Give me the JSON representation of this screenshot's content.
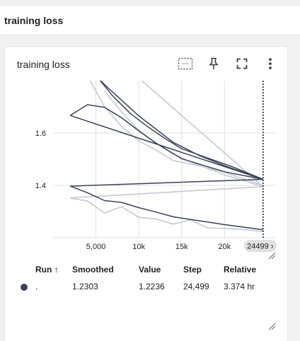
{
  "section": {
    "title": "training loss"
  },
  "card": {
    "title": "training loss",
    "toolbar": {
      "fit_icon": "fit-domain-icon",
      "pin_icon": "pin-icon",
      "fullscreen_icon": "fullscreen-icon",
      "more_icon": "more-vert-icon"
    }
  },
  "legend": {
    "headers": {
      "run": "Run ↑",
      "smoothed": "Smoothed",
      "value": "Value",
      "step": "Step",
      "relative": "Relative"
    },
    "row": {
      "run": ".",
      "smoothed": "1.2303",
      "value": "1.2236",
      "step": "24,499",
      "relative": "3.374 hr"
    }
  },
  "colors": {
    "smoothed": "#3a4256",
    "raw": "#c7c9d4",
    "grid": "#e0e0e0",
    "cursor": "#212121",
    "step_badge": "#e0e0e0"
  },
  "chart_data": {
    "type": "line",
    "title": "",
    "xlabel": "",
    "ylabel": "",
    "x_tick_labels": [
      "5,000",
      "10k",
      "15k",
      "20k"
    ],
    "x_ticks": [
      5000,
      10000,
      15000,
      20000
    ],
    "y_tick_labels": [
      "1.6",
      "1.4"
    ],
    "y_ticks": [
      1.6,
      1.4
    ],
    "xlim": [
      0,
      26000
    ],
    "ylim": [
      1.2,
      1.8
    ],
    "cursor_step": 24499,
    "cursor_label": "24499 ›",
    "series": [
      {
        "kind": "smoothed",
        "x": [
          2000,
          4000,
          6000,
          8000,
          10000,
          12000,
          15000,
          20000,
          24499
        ],
        "y": [
          1.667,
          1.708,
          1.698,
          1.658,
          1.608,
          1.562,
          1.502,
          1.452,
          1.423
        ]
      },
      {
        "kind": "smoothed",
        "x": [
          2000,
          24499
        ],
        "y": [
          1.667,
          1.423
        ]
      },
      {
        "kind": "smoothed",
        "x": [
          2000,
          24499
        ],
        "y": [
          1.397,
          1.423
        ]
      },
      {
        "kind": "smoothed",
        "x": [
          2000,
          4000,
          6000,
          8000,
          10000,
          12000,
          14000,
          16000,
          18000,
          20000,
          24499
        ],
        "y": [
          1.397,
          1.372,
          1.342,
          1.335,
          1.315,
          1.298,
          1.28,
          1.27,
          1.26,
          1.25,
          1.2303
        ]
      },
      {
        "kind": "smoothed",
        "x": [
          3500,
          6000,
          8000,
          10000,
          12000,
          14000,
          17000,
          20000,
          24499
        ],
        "y": [
          1.87,
          1.785,
          1.725,
          1.665,
          1.615,
          1.565,
          1.515,
          1.475,
          1.423
        ]
      },
      {
        "kind": "smoothed",
        "x": [
          5000,
          7000,
          9000,
          11000,
          13000,
          15000,
          18000,
          21000,
          24499
        ],
        "y": [
          1.82,
          1.74,
          1.675,
          1.625,
          1.58,
          1.54,
          1.505,
          1.47,
          1.423
        ]
      },
      {
        "kind": "raw",
        "x": [
          2000,
          4000,
          6000,
          8000,
          10000,
          12000,
          14000,
          16000,
          18000,
          20000,
          22000,
          24499
        ],
        "y": [
          1.352,
          1.34,
          1.295,
          1.318,
          1.278,
          1.272,
          1.252,
          1.268,
          1.238,
          1.235,
          1.232,
          1.2236
        ]
      },
      {
        "kind": "raw",
        "x": [
          2000,
          24499
        ],
        "y": [
          1.352,
          1.395
        ]
      },
      {
        "kind": "raw",
        "x": [
          10000,
          24499
        ],
        "y": [
          1.81,
          1.395
        ]
      },
      {
        "kind": "raw",
        "x": [
          4000,
          6000,
          8000,
          10000,
          12000,
          14000,
          17000,
          20000,
          24499
        ],
        "y": [
          1.82,
          1.7,
          1.625,
          1.57,
          1.535,
          1.495,
          1.475,
          1.45,
          1.4
        ]
      },
      {
        "kind": "raw",
        "x": [
          6000,
          8000,
          10000,
          12000,
          14000,
          16000,
          20000,
          24499
        ],
        "y": [
          1.76,
          1.68,
          1.61,
          1.56,
          1.52,
          1.49,
          1.44,
          1.395
        ]
      }
    ]
  }
}
